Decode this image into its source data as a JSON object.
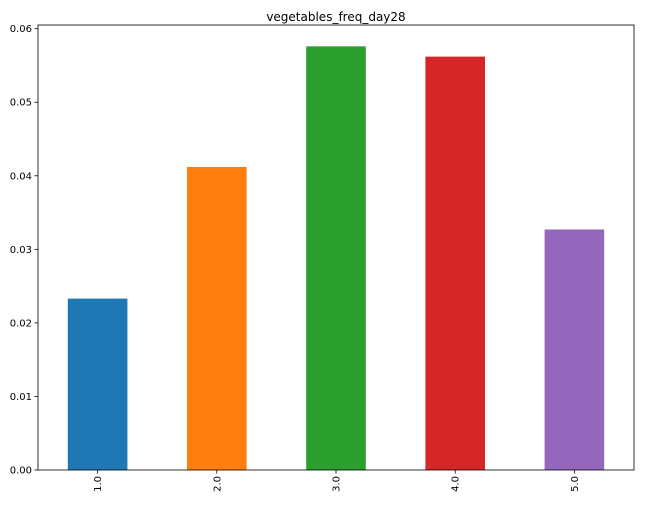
{
  "chart_data": {
    "type": "bar",
    "title": "vegetables_freq_day28",
    "xlabel": "",
    "ylabel": "",
    "categories": [
      "1.0",
      "2.0",
      "3.0",
      "4.0",
      "5.0"
    ],
    "values": [
      0.0233,
      0.0412,
      0.0576,
      0.0562,
      0.0327
    ],
    "colors": [
      "#1f77b4",
      "#ff7f0e",
      "#2ca02c",
      "#d62728",
      "#9467bd"
    ],
    "ylim": [
      0,
      0.0605
    ],
    "yticks": [
      0.0,
      0.01,
      0.02,
      0.03,
      0.04,
      0.05,
      0.06
    ],
    "ytick_labels": [
      "0.00",
      "0.01",
      "0.02",
      "0.03",
      "0.04",
      "0.05",
      "0.06"
    ],
    "grid": false,
    "legend": "none"
  }
}
